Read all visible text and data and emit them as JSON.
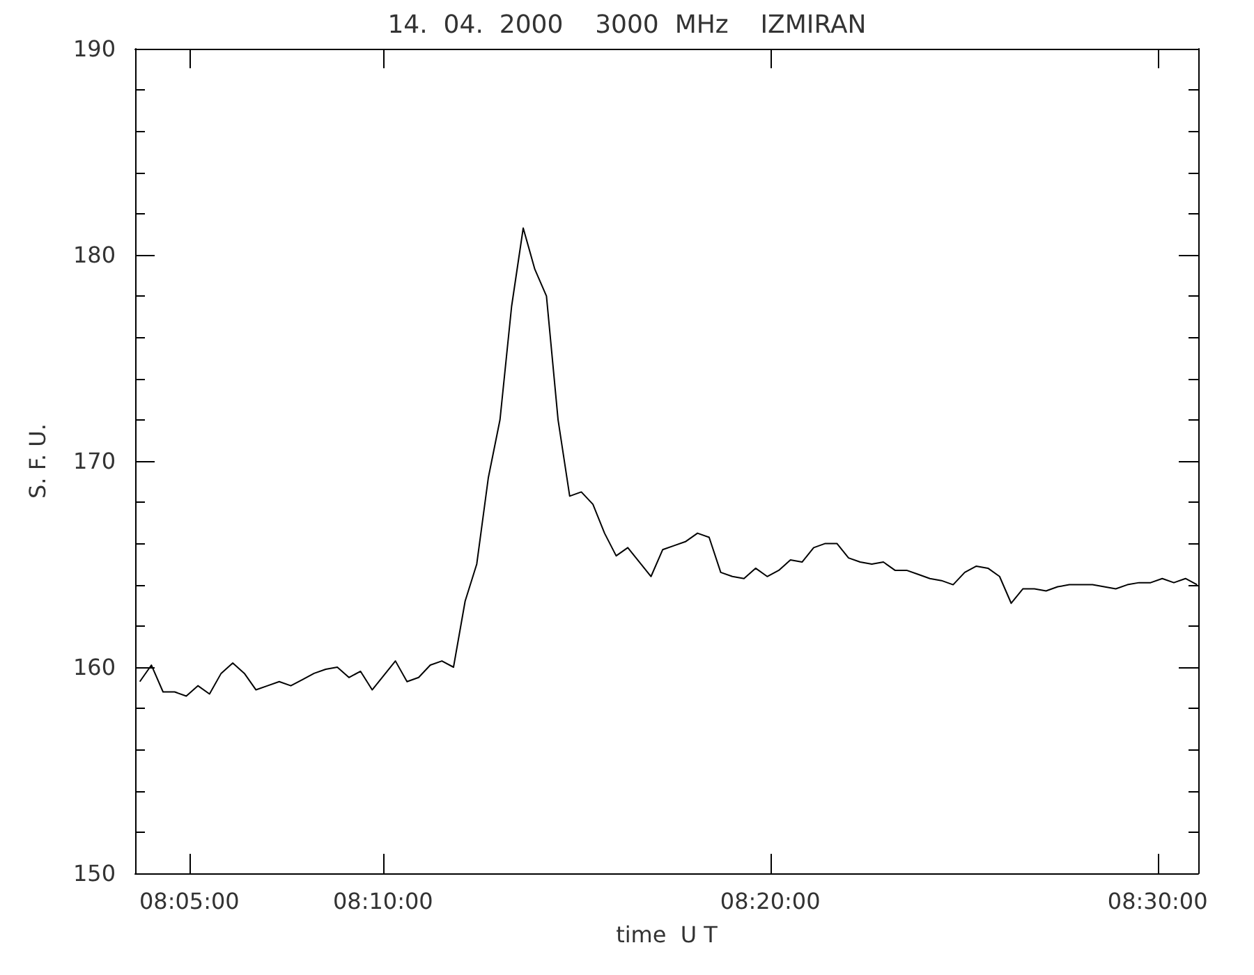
{
  "chart_data": {
    "type": "line",
    "title": "14.  04.  2000    3000  MHz    IZMIRAN",
    "xlabel": "time  U T",
    "ylabel": "S. F. U.",
    "x": [
      8.062,
      8.067,
      8.072,
      8.077,
      8.082,
      8.087,
      8.092,
      8.097,
      8.102,
      8.107,
      8.112,
      8.117,
      8.122,
      8.127,
      8.132,
      8.137,
      8.142,
      8.147,
      8.152,
      8.157,
      8.162,
      8.167,
      8.172,
      8.177,
      8.182,
      8.187,
      8.192,
      8.197,
      8.202,
      8.207,
      8.212,
      8.217,
      8.222,
      8.227,
      8.232,
      8.237,
      8.242,
      8.247,
      8.252,
      8.257,
      8.262,
      8.267,
      8.272,
      8.277,
      8.282,
      8.287,
      8.292,
      8.297,
      8.302,
      8.307,
      8.312,
      8.317,
      8.322,
      8.327,
      8.332,
      8.337,
      8.342,
      8.347,
      8.352,
      8.357,
      8.362,
      8.367,
      8.372,
      8.377,
      8.382,
      8.387,
      8.392,
      8.397,
      8.402,
      8.407,
      8.412,
      8.417,
      8.422,
      8.427,
      8.432,
      8.437,
      8.442,
      8.447,
      8.452,
      8.457,
      8.462,
      8.467,
      8.472,
      8.477,
      8.482,
      8.487,
      8.492,
      8.497,
      8.502,
      8.507,
      8.512,
      8.517
    ],
    "series": [
      {
        "color": "#000000",
        "values": [
          159.3,
          160.1,
          158.8,
          158.8,
          158.6,
          159.1,
          158.7,
          159.7,
          160.2,
          159.7,
          158.9,
          159.1,
          159.3,
          159.1,
          159.4,
          159.7,
          159.9,
          160.0,
          159.5,
          159.8,
          158.9,
          159.6,
          160.3,
          159.3,
          159.5,
          160.1,
          160.3,
          160.0,
          163.2,
          165.0,
          169.2,
          172.0,
          177.5,
          181.3,
          179.3,
          178.0,
          172.0,
          168.3,
          168.5,
          167.9,
          166.5,
          165.4,
          165.8,
          165.1,
          164.4,
          165.7,
          165.9,
          166.1,
          166.5,
          166.3,
          164.6,
          164.4,
          164.3,
          164.8,
          164.4,
          164.7,
          165.2,
          165.1,
          165.8,
          166.0,
          166.0,
          165.3,
          165.1,
          165.0,
          165.1,
          164.7,
          164.7,
          164.5,
          164.3,
          164.2,
          164.0,
          164.6,
          164.9,
          164.8,
          164.4,
          163.1,
          163.8,
          163.8,
          163.7,
          163.9,
          164.0,
          164.0,
          164.0,
          163.9,
          163.8,
          164.0,
          164.1,
          164.1,
          164.3,
          164.1,
          164.3,
          164.0
        ]
      }
    ],
    "xlim": [
      8.06,
      8.5175
    ],
    "xticks": [
      {
        "value": 8.08333,
        "label": "08:05:00"
      },
      {
        "value": 8.16667,
        "label": "08:10:00"
      },
      {
        "value": 8.33333,
        "label": "08:20:00"
      },
      {
        "value": 8.5,
        "label": "08:30:00"
      }
    ],
    "ylim": [
      150,
      190
    ],
    "yticks": [
      150,
      160,
      170,
      180,
      190
    ],
    "grid": false,
    "marker": "none",
    "line_style": "solid"
  }
}
